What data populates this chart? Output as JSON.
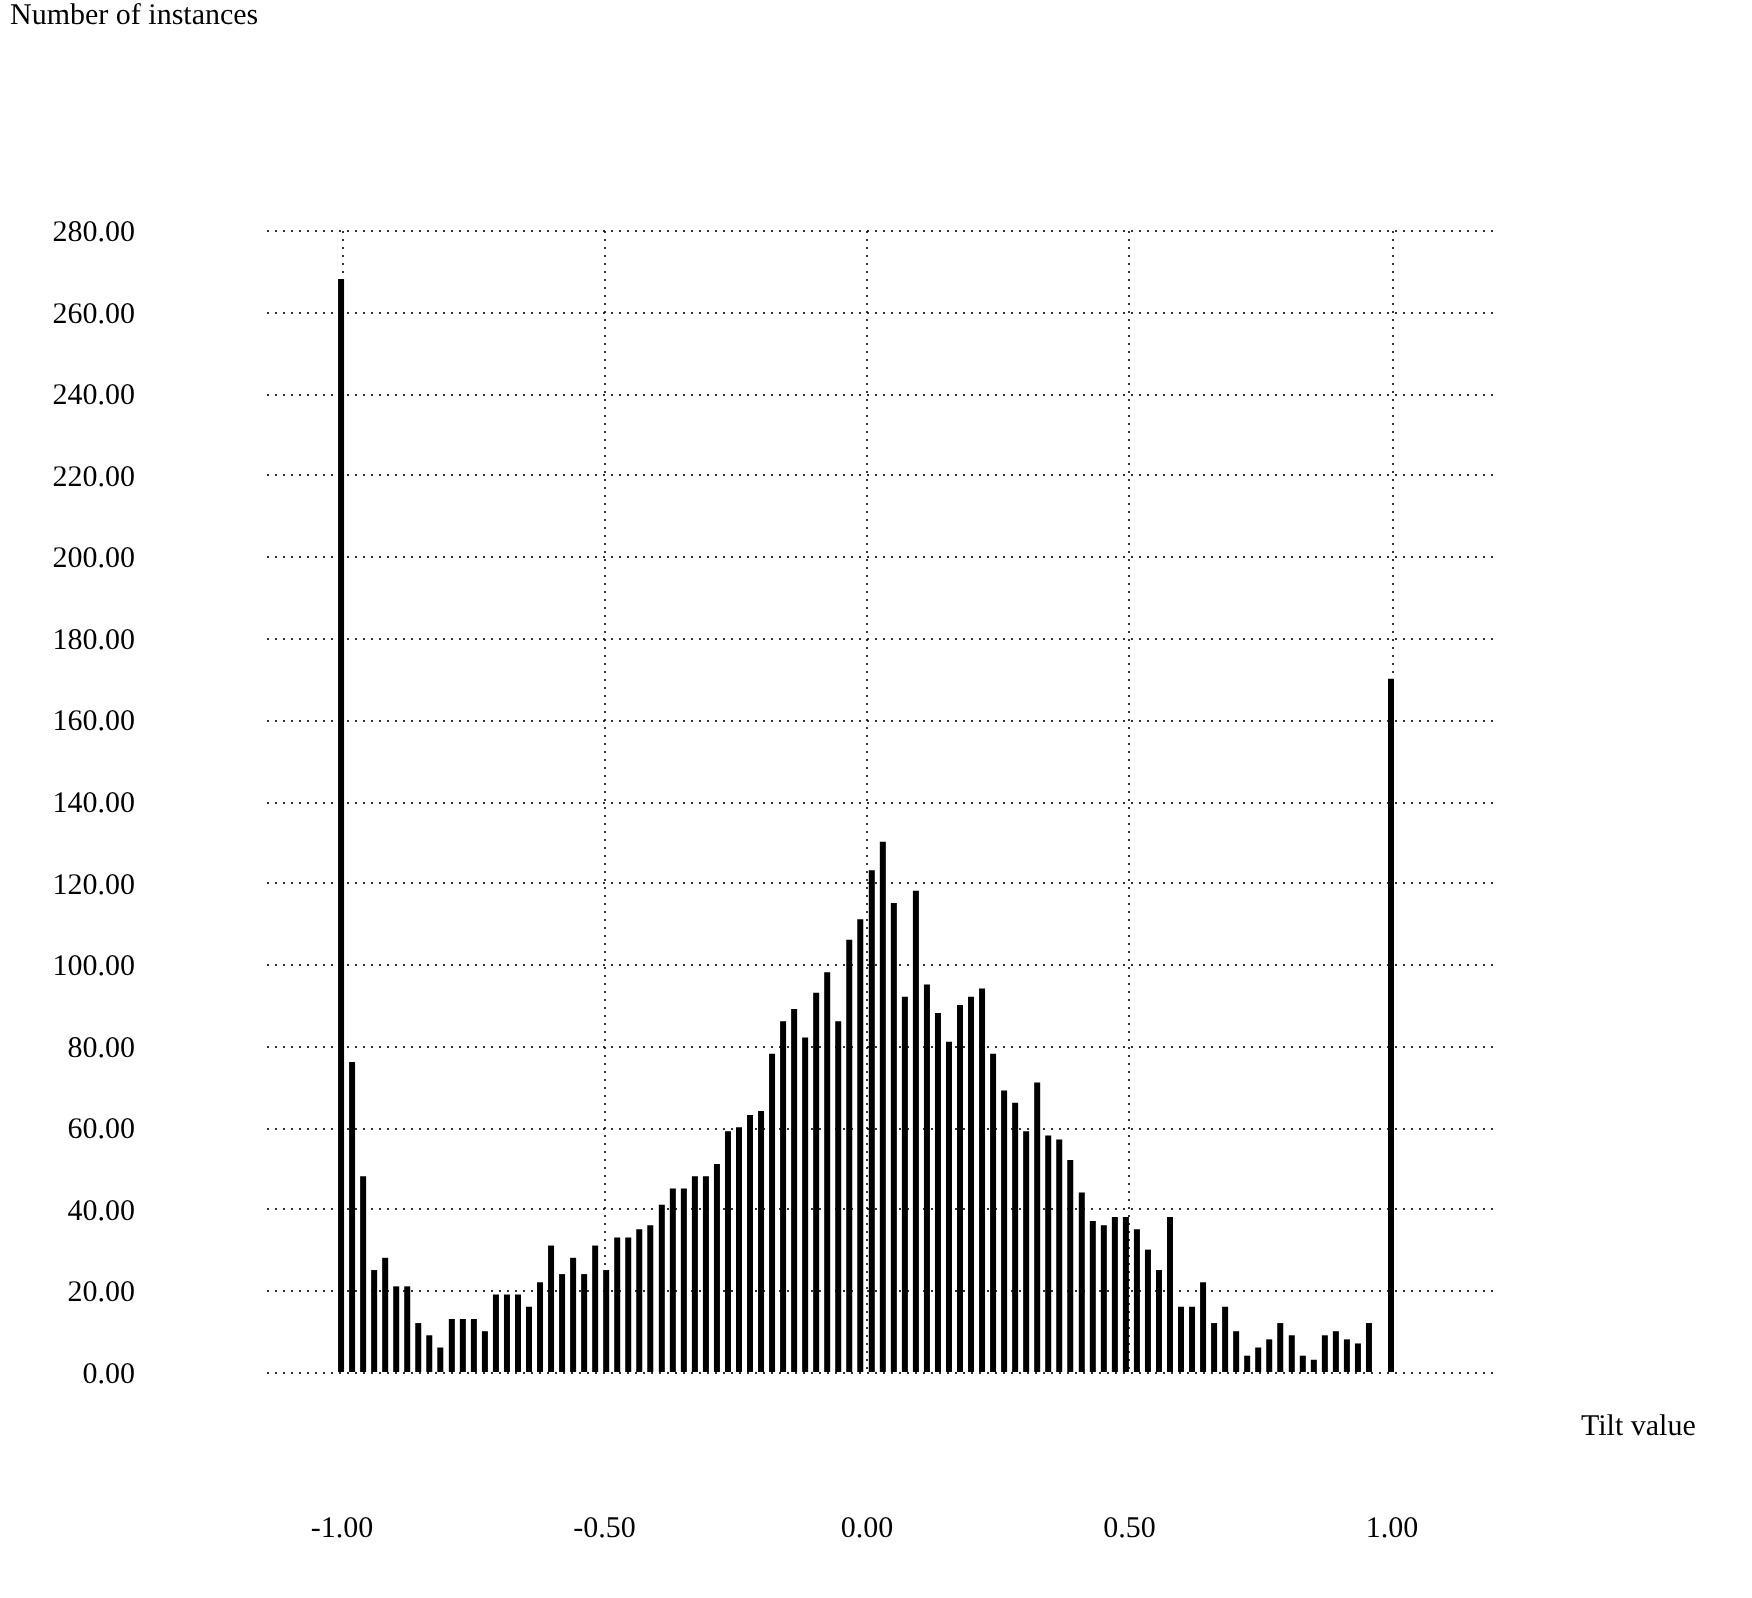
{
  "chart_data": {
    "type": "bar",
    "xlabel": "Tilt value",
    "annotations": [
      "Number of instances"
    ],
    "color": "#000000",
    "grid": true,
    "x": [
      -1,
      -0.979,
      -0.958,
      -0.937,
      -0.916,
      -0.895,
      -0.874,
      -0.853,
      -0.832,
      -0.811,
      -0.789,
      -0.768,
      -0.747,
      -0.726,
      -0.705,
      -0.684,
      -0.663,
      -0.642,
      -0.621,
      -0.6,
      -0.579,
      -0.558,
      -0.537,
      -0.516,
      -0.495,
      -0.474,
      -0.453,
      -0.432,
      -0.411,
      -0.389,
      -0.368,
      -0.347,
      -0.326,
      -0.305,
      -0.284,
      -0.263,
      -0.242,
      -0.221,
      -0.2,
      -0.179,
      -0.158,
      -0.137,
      -0.116,
      -0.095,
      -0.074,
      -0.053,
      -0.032,
      -0.011,
      0.011,
      0.032,
      0.053,
      0.074,
      0.095,
      0.116,
      0.137,
      0.158,
      0.179,
      0.2,
      0.221,
      0.242,
      0.263,
      0.284,
      0.305,
      0.326,
      0.347,
      0.368,
      0.389,
      0.411,
      0.432,
      0.453,
      0.474,
      0.495,
      0.516,
      0.537,
      0.558,
      0.579,
      0.6,
      0.621,
      0.642,
      0.663,
      0.684,
      0.705,
      0.726,
      0.747,
      0.768,
      0.789,
      0.811,
      0.832,
      0.853,
      0.874,
      0.895,
      0.916,
      0.937,
      0.958,
      0.979,
      1
    ],
    "values": [
      268,
      76,
      48,
      25,
      28,
      21,
      21,
      12,
      9,
      6,
      13,
      13,
      13,
      10,
      19,
      19,
      19,
      16,
      22,
      31,
      24,
      28,
      24,
      31,
      25,
      33,
      33,
      35,
      36,
      41,
      45,
      45,
      48,
      48,
      51,
      59,
      60,
      63,
      64,
      78,
      86,
      89,
      82,
      93,
      98,
      86,
      106,
      111,
      123,
      130,
      115,
      92,
      118,
      95,
      88,
      81,
      90,
      92,
      94,
      78,
      69,
      66,
      59,
      71,
      58,
      57,
      52,
      44,
      37,
      36,
      38,
      38,
      35,
      30,
      25,
      38,
      16,
      16,
      22,
      12,
      16,
      10,
      4,
      6,
      8,
      12,
      9,
      4,
      3,
      9,
      10,
      8,
      7,
      12,
      null,
      170
    ],
    "xlim": [
      -1.143,
      1.2
    ],
    "ylim": [
      0,
      280
    ],
    "xticks": [
      {
        "value": -1,
        "label": "-1.00"
      },
      {
        "value": -0.5,
        "label": "-0.50"
      },
      {
        "value": 0,
        "label": "0.00"
      },
      {
        "value": 0.5,
        "label": "0.50"
      },
      {
        "value": 1,
        "label": "1.00"
      }
    ],
    "yticks": [
      {
        "value": 0,
        "label": "0.00"
      },
      {
        "value": 20,
        "label": "20.00"
      },
      {
        "value": 40,
        "label": "40.00"
      },
      {
        "value": 60,
        "label": "60.00"
      },
      {
        "value": 80,
        "label": "80.00"
      },
      {
        "value": 100,
        "label": "100.00"
      },
      {
        "value": 120,
        "label": "120.00"
      },
      {
        "value": 140,
        "label": "140.00"
      },
      {
        "value": 160,
        "label": "160.00"
      },
      {
        "value": 180,
        "label": "180.00"
      },
      {
        "value": 200,
        "label": "200.00"
      },
      {
        "value": 220,
        "label": "220.00"
      },
      {
        "value": 240,
        "label": "240.00"
      },
      {
        "value": 260,
        "label": "260.00"
      },
      {
        "value": 280,
        "label": "280.00"
      }
    ]
  }
}
